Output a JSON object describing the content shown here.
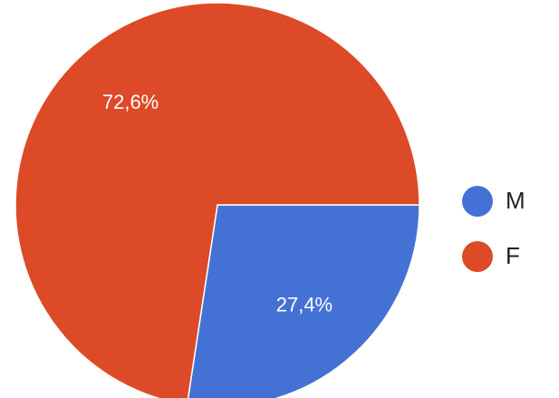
{
  "chart_data": {
    "type": "pie",
    "categories": [
      "M",
      "F"
    ],
    "values": [
      27.4,
      72.6
    ],
    "value_labels": [
      "27,4%",
      "72,6%"
    ],
    "colors": [
      "#4472d4",
      "#dc4a28"
    ],
    "legend": "right"
  }
}
